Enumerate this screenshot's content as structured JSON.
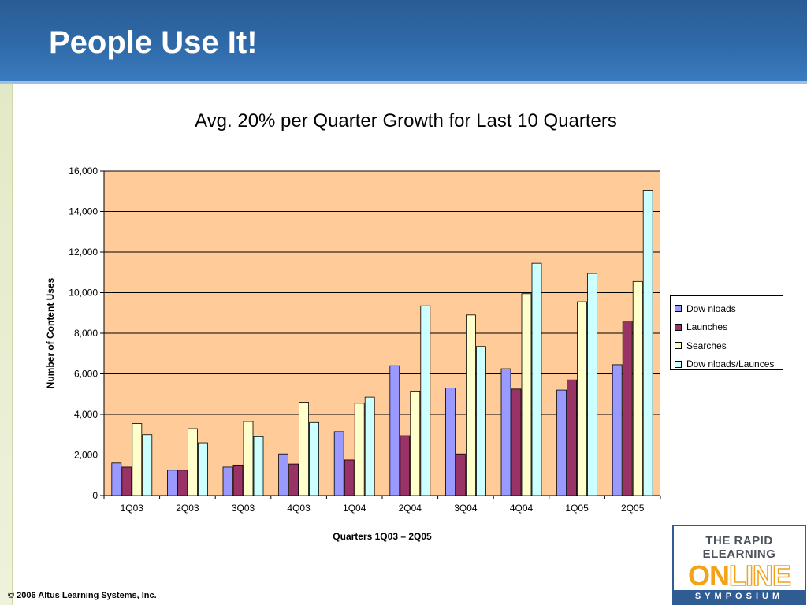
{
  "slide": {
    "title": "People Use It!",
    "footer": "© 2006 Altus Learning Systems, Inc."
  },
  "logo": {
    "line1": "THE RAPID",
    "line2": "ELEARNING",
    "online_on": "ON",
    "online_line": "LINE",
    "band": "SYMPOSIUM"
  },
  "colors": {
    "plot_background": "#ffcc99",
    "header": "#2f6aa8"
  },
  "chart_data": {
    "type": "bar",
    "title": "Avg. 20% per Quarter Growth for Last 10 Quarters",
    "xlabel": "Quarters 1Q03 – 2Q05",
    "ylabel": "Number of Content Uses",
    "ylim": [
      0,
      16000
    ],
    "yticks": [
      "0",
      "2,000",
      "4,000",
      "6,000",
      "8,000",
      "10,000",
      "12,000",
      "14,000",
      "16,000"
    ],
    "grid": true,
    "legend_position": "right",
    "categories": [
      "1Q03",
      "2Q03",
      "3Q03",
      "4Q03",
      "1Q04",
      "2Q04",
      "3Q04",
      "4Q04",
      "1Q05",
      "2Q05"
    ],
    "series": [
      {
        "name": "Dow nloads",
        "color": "#9999ff",
        "values": [
          1600,
          1250,
          1400,
          2050,
          3150,
          6400,
          5300,
          6250,
          5200,
          6450
        ]
      },
      {
        "name": "Launches",
        "color": "#993366",
        "values": [
          1400,
          1250,
          1500,
          1550,
          1750,
          2950,
          2050,
          5250,
          5700,
          8600
        ]
      },
      {
        "name": "Searches",
        "color": "#ffffcc",
        "values": [
          3550,
          3300,
          3650,
          4600,
          4550,
          5150,
          8900,
          9950,
          9550,
          10550
        ]
      },
      {
        "name": "Dow nloads/Launces",
        "color": "#ccffff",
        "values": [
          3000,
          2600,
          2900,
          3600,
          4850,
          9350,
          7350,
          11450,
          10950,
          15050
        ]
      }
    ]
  }
}
